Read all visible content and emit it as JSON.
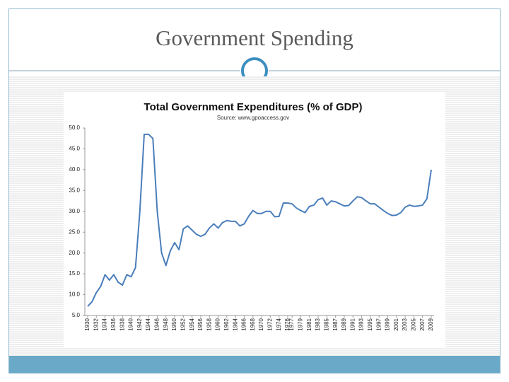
{
  "title": "Government Spending",
  "chart_data": {
    "type": "line",
    "title": "Total Government Expenditures (% of GDP)",
    "subtitle": "Source: www.gpoaccess.gov",
    "color": "#4a7ebb",
    "grid": false,
    "x": [
      1930,
      1931,
      1932,
      1933,
      1934,
      1935,
      1936,
      1937,
      1938,
      1939,
      1940,
      1941,
      1942,
      1943,
      1944,
      1945,
      1946,
      1947,
      1948,
      1949,
      1950,
      1951,
      1952,
      1953,
      1954,
      1955,
      1956,
      1957,
      1958,
      1959,
      1960,
      1961,
      1962,
      1963,
      1964,
      1965,
      1966,
      1967,
      1968,
      1969,
      1970,
      1971,
      1972,
      1973,
      1974,
      1975,
      1976,
      1977,
      1978,
      1979,
      1980,
      1981,
      1982,
      1983,
      1984,
      1985,
      1986,
      1987,
      1988,
      1989,
      1990,
      1991,
      1992,
      1993,
      1994,
      1995,
      1996,
      1997,
      1998,
      1999,
      2000,
      2001,
      2002,
      2003,
      2004,
      2005,
      2006,
      2007,
      2008,
      2009
    ],
    "values": [
      7.2,
      8.3,
      10.5,
      12,
      14.8,
      13.5,
      14.8,
      13,
      12.3,
      14.8,
      14.3,
      16.5,
      30,
      48.5,
      48.5,
      47.5,
      30,
      20,
      17,
      20.5,
      22.5,
      20.8,
      25.8,
      26.5,
      25.5,
      24.5,
      24,
      24.5,
      26,
      27,
      26,
      27.3,
      27.8,
      27.6,
      27.6,
      26.5,
      27,
      28.8,
      30.2,
      29.5,
      29.5,
      30,
      30,
      28.7,
      28.8,
      32,
      32,
      31.8,
      30.8,
      30.2,
      29.7,
      31.2,
      31.5,
      32.8,
      33.2,
      31.5,
      32.5,
      32.3,
      31.8,
      31.3,
      31.4,
      32.5,
      33.5,
      33.3,
      32.5,
      31.8,
      31.8,
      31,
      30.2,
      29.5,
      29,
      29.1,
      29.7,
      31,
      31.5,
      31.2,
      31.3,
      31.5,
      33,
      40
    ],
    "xlim": [
      1930,
      2009
    ],
    "xticks": [
      1930,
      1932,
      1934,
      1936,
      1938,
      1940,
      1942,
      1944,
      1946,
      1948,
      1950,
      1952,
      1954,
      1956,
      1958,
      1960,
      1962,
      1964,
      1966,
      1968,
      1970,
      1972,
      1974,
      1976,
      1977,
      1979,
      1981,
      1983,
      1985,
      1987,
      1989,
      1991,
      1993,
      1995,
      1997,
      1999,
      2001,
      2003,
      2005,
      2007,
      2009
    ],
    "ylim": [
      5,
      50
    ],
    "yticks": [
      {
        "value": 5,
        "label": "5.0"
      },
      {
        "value": 10,
        "label": "10.0"
      },
      {
        "value": 15,
        "label": "15.0"
      },
      {
        "value": 20,
        "label": "20.0"
      },
      {
        "value": 25,
        "label": "25.0"
      },
      {
        "value": 30,
        "label": "30.0"
      },
      {
        "value": 35,
        "label": "35.0"
      },
      {
        "value": 40,
        "label": "40.0"
      },
      {
        "value": 45,
        "label": "45.0"
      },
      {
        "value": 50,
        "label": "50.0"
      }
    ]
  }
}
